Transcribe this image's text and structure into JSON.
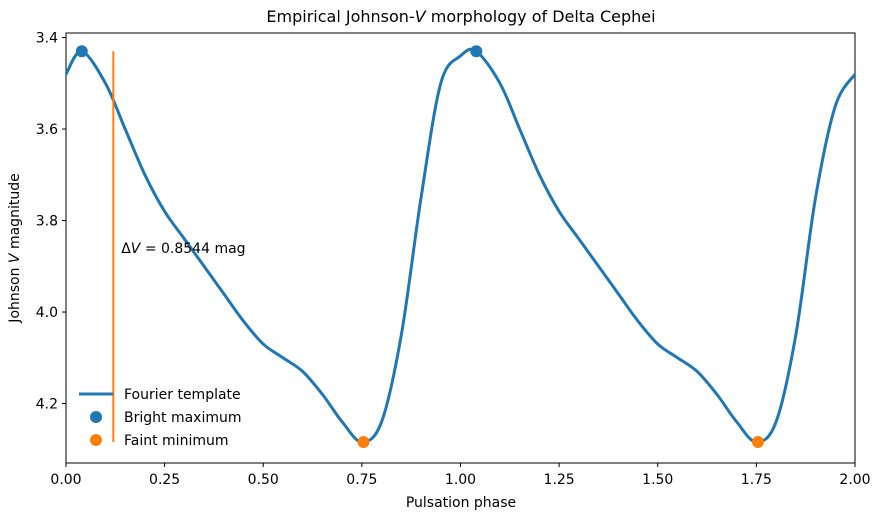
{
  "chart_data": {
    "type": "line",
    "title_prefix": "Empirical Johnson-",
    "title_var": "V",
    "title_suffix": " morphology of Delta Cephei",
    "xlabel": "Pulsation phase",
    "ylabel_prefix": "Johnson ",
    "ylabel_var": "V",
    "ylabel_suffix": " magnitude",
    "xlim": [
      0.0,
      2.0
    ],
    "ylim": [
      4.33,
      3.39
    ],
    "y_inverted": true,
    "xticks": [
      "0.00",
      "0.25",
      "0.50",
      "0.75",
      "1.00",
      "1.25",
      "1.50",
      "1.75",
      "2.00"
    ],
    "yticks": [
      "3.4",
      "3.6",
      "3.8",
      "4.0",
      "4.2"
    ],
    "grid": false,
    "legend_position": "lower-left",
    "series": [
      {
        "name": "Fourier template",
        "color": "#1f77b4",
        "x": [
          0.0,
          0.04,
          0.1,
          0.15,
          0.2,
          0.25,
          0.3,
          0.35,
          0.4,
          0.45,
          0.5,
          0.55,
          0.6,
          0.65,
          0.7,
          0.75,
          0.8,
          0.85,
          0.9,
          0.95,
          1.0,
          1.04,
          1.1,
          1.15,
          1.2,
          1.25,
          1.3,
          1.35,
          1.4,
          1.45,
          1.5,
          1.55,
          1.6,
          1.65,
          1.7,
          1.75,
          1.8,
          1.85,
          1.9,
          1.95,
          2.0
        ],
        "y": [
          3.48,
          3.43,
          3.5,
          3.6,
          3.7,
          3.78,
          3.84,
          3.9,
          3.96,
          4.02,
          4.07,
          4.1,
          4.13,
          4.18,
          4.24,
          4.284,
          4.24,
          4.05,
          3.75,
          3.5,
          3.44,
          3.43,
          3.5,
          3.6,
          3.7,
          3.78,
          3.84,
          3.9,
          3.96,
          4.02,
          4.07,
          4.1,
          4.13,
          4.18,
          4.24,
          4.284,
          4.24,
          4.05,
          3.75,
          3.55,
          3.48
        ]
      }
    ],
    "markers": [
      {
        "name": "Bright maximum",
        "color": "#1f77b4",
        "points": [
          [
            0.04,
            3.43
          ],
          [
            1.04,
            3.43
          ]
        ]
      },
      {
        "name": "Faint minimum",
        "color": "#ff7f0e",
        "points": [
          [
            0.754,
            4.284
          ],
          [
            1.754,
            4.284
          ]
        ]
      }
    ],
    "amplitude_line": {
      "color": "#ff7f0e",
      "x": 0.12,
      "y_top": 3.43,
      "y_bottom": 4.284
    },
    "annotation": {
      "prefix": "Δ",
      "var": "V",
      "text": " = 0.8544 mag",
      "x": 0.14,
      "y": 3.86
    }
  }
}
